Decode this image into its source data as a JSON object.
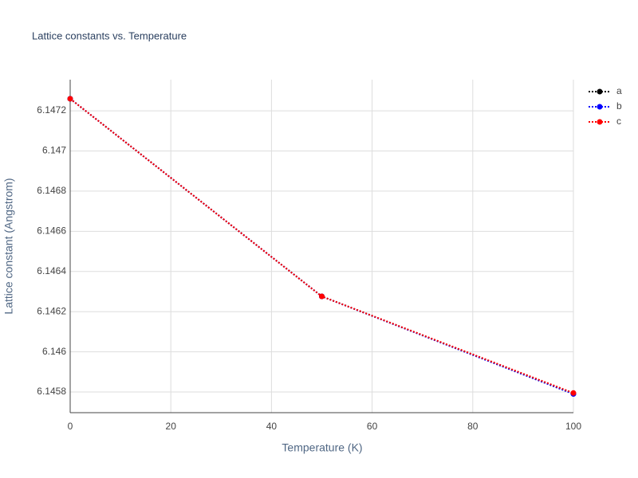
{
  "chart_data": {
    "type": "line",
    "title": "Lattice constants vs. Temperature",
    "x_label": "Temperature (K)",
    "y_label": "Lattice constant (Angstrom)",
    "x": [
      0,
      50,
      100
    ],
    "series": [
      {
        "name": "a",
        "color": "#000000",
        "values": [
          6.14726,
          6.146276,
          6.145792
        ]
      },
      {
        "name": "b",
        "color": "#0000ff",
        "values": [
          6.14726,
          6.146276,
          6.14579
        ]
      },
      {
        "name": "c",
        "color": "#ff0000",
        "values": [
          6.14726,
          6.146276,
          6.145795
        ]
      }
    ],
    "xlim": [
      0,
      100
    ],
    "xticks": [
      0,
      20,
      40,
      60,
      80,
      100
    ],
    "ylim": [
      6.145697,
      6.147355
    ],
    "yticks": [
      6.1458,
      6.146,
      6.1462,
      6.1464,
      6.1466,
      6.1468,
      6.147,
      6.1472
    ],
    "grid": true,
    "legend": "top-right"
  }
}
